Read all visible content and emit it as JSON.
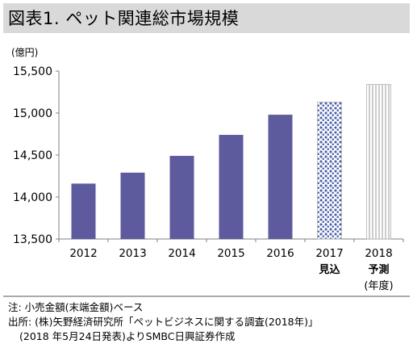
{
  "page": {
    "title": "図表1. ペット関連総市場規模",
    "notes": [
      "注: 小売金額(末端金額)ベース",
      "出所: (株)矢野経済研究所「ペットビジネスに関する調査(2018年)」",
      "(2018 年5月24日発表)よりSMBC日興証券作成"
    ]
  },
  "chart_data": {
    "type": "bar",
    "title": "図表1. ペット関連総市場規模",
    "ylabel": "(億円)",
    "xlabel": "(年度)",
    "ylim": [
      13500,
      15500
    ],
    "yticks": [
      13500,
      14000,
      14500,
      15000,
      15500
    ],
    "ytick_labels": [
      "13,500",
      "14,000",
      "14,500",
      "15,000",
      "15,500"
    ],
    "grid": false,
    "categories": [
      {
        "line1": "2012",
        "line2": ""
      },
      {
        "line1": "2013",
        "line2": ""
      },
      {
        "line1": "2014",
        "line2": ""
      },
      {
        "line1": "2015",
        "line2": ""
      },
      {
        "line1": "2016",
        "line2": ""
      },
      {
        "line1": "2017",
        "line2": "見込"
      },
      {
        "line1": "2018",
        "line2": "予測"
      }
    ],
    "values": [
      14160,
      14290,
      14490,
      14740,
      14980,
      15130,
      15340
    ],
    "styles": [
      "actual",
      "actual",
      "actual",
      "actual",
      "actual",
      "estimate",
      "forecast"
    ],
    "colors": {
      "actual": "#5e5a9e",
      "estimate_dots": "#4a5fa8",
      "forecast_stripes": "#9a9a9a",
      "axis": "#808080"
    }
  }
}
